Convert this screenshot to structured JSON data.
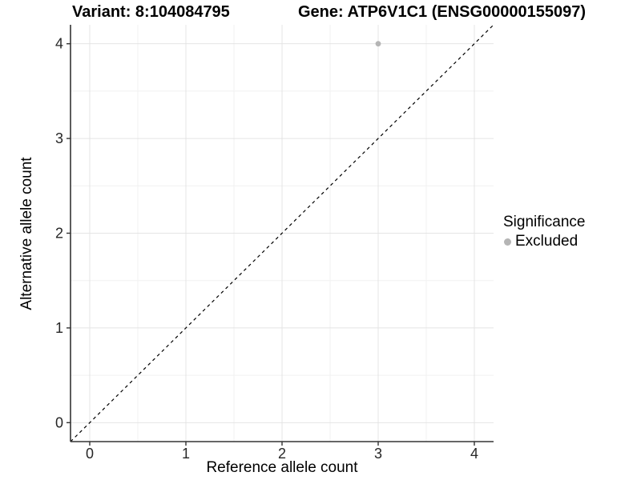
{
  "titles": {
    "variant": "Variant: 8:104084795",
    "gene": "Gene: ATP6V1C1 (ENSG00000155097)"
  },
  "legend": {
    "title": "Significance",
    "items": [
      {
        "label": "Excluded",
        "color": "#b5b5b5",
        "marker": "circle-icon"
      }
    ]
  },
  "chart_data": {
    "type": "scatter",
    "title_left": "Variant: 8:104084795",
    "title_right": "Gene: ATP6V1C1 (ENSG00000155097)",
    "xlabel": "Reference allele count",
    "ylabel": "Alternative allele count",
    "xlim": [
      -0.2,
      4.2
    ],
    "ylim": [
      -0.2,
      4.2
    ],
    "xticks": [
      0,
      1,
      2,
      3,
      4
    ],
    "yticks": [
      0,
      1,
      2,
      3,
      4
    ],
    "x_minor": [
      0.5,
      1.5,
      2.5,
      3.5
    ],
    "y_minor": [
      0.5,
      1.5,
      2.5,
      3.5
    ],
    "grid": "major and minor light grey gridlines on white panel",
    "legend_position": "right",
    "legend_title": "Significance",
    "series": [
      {
        "name": "Excluded",
        "color": "#b5b5b5",
        "marker": "circle",
        "points": [
          {
            "x": 3,
            "y": 4
          }
        ]
      }
    ],
    "reference_line": {
      "meaning": "identity line y = x",
      "style": "dashed",
      "color": "#000000",
      "from": {
        "x": -0.2,
        "y": -0.2
      },
      "to": {
        "x": 4.2,
        "y": 4.2
      }
    }
  },
  "colors": {
    "background": "#ffffff",
    "grid_major": "#e4e4e4",
    "grid_minor": "#f1f1f1",
    "axis_line": "#333333",
    "tick_mark": "#333333",
    "tick_label": "#262626",
    "text": "#000000",
    "point": "#b5b5b5"
  }
}
